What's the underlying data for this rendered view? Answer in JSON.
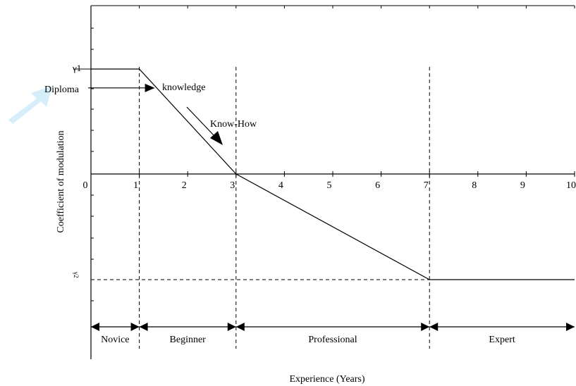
{
  "chart_data": {
    "type": "line",
    "title": "",
    "xlabel": "Experience (Years)",
    "ylabel": "Coefficient of modulation",
    "xlim": [
      0,
      10
    ],
    "x_ticks": [
      "0",
      "1",
      "2",
      "3",
      "4",
      "5",
      "6",
      "7",
      "8",
      "9",
      "10"
    ],
    "y_labels": {
      "gamma1": "γ1",
      "gamma2": "γ2"
    },
    "y_levels": {
      "gamma1": 1.0,
      "diploma": 0.82,
      "zero": 0,
      "gamma2": -1.0
    },
    "series": [
      {
        "x": [
          0,
          1,
          3,
          7,
          10
        ],
        "y": [
          1.0,
          1.0,
          0,
          -1.0,
          -1.0
        ]
      }
    ],
    "vertical_dashed_at": [
      1,
      3,
      7
    ],
    "annotations": {
      "diploma": "Diploma",
      "knowledge": "knowledge",
      "know_how": "Know-How"
    },
    "stages": [
      {
        "label": "Novice",
        "from": 0,
        "to": 1
      },
      {
        "label": "Beginner",
        "from": 1,
        "to": 3
      },
      {
        "label": "Professional",
        "from": 3,
        "to": 7
      },
      {
        "label": "Expert",
        "from": 7,
        "to": 10
      }
    ],
    "grid": false,
    "accent_color": "#d6eefa"
  }
}
